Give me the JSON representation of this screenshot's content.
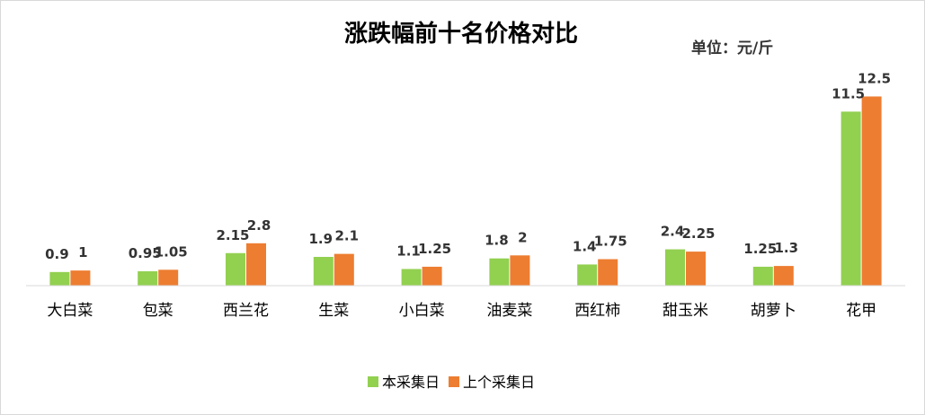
{
  "chart_data": {
    "type": "bar",
    "title": "涨跌幅前十名价格对比",
    "unit_label": "单位：元/斤",
    "categories": [
      "大白菜",
      "包菜",
      "西兰花",
      "生菜",
      "小白菜",
      "油麦菜",
      "西红柿",
      "甜玉米",
      "胡萝卜",
      "花甲"
    ],
    "series": [
      {
        "name": "本采集日",
        "color": "#92d050",
        "values": [
          0.9,
          0.95,
          2.15,
          1.9,
          1.1,
          1.8,
          1.4,
          2.4,
          1.25,
          11.5
        ]
      },
      {
        "name": "上个采集日",
        "color": "#ed7d31",
        "values": [
          1,
          1.05,
          2.8,
          2.1,
          1.25,
          2,
          1.75,
          2.25,
          1.3,
          12.5
        ]
      }
    ],
    "ylim": [
      0,
      13
    ],
    "grid": false,
    "legend_position": "bottom-center",
    "xlabel": "",
    "ylabel": ""
  }
}
